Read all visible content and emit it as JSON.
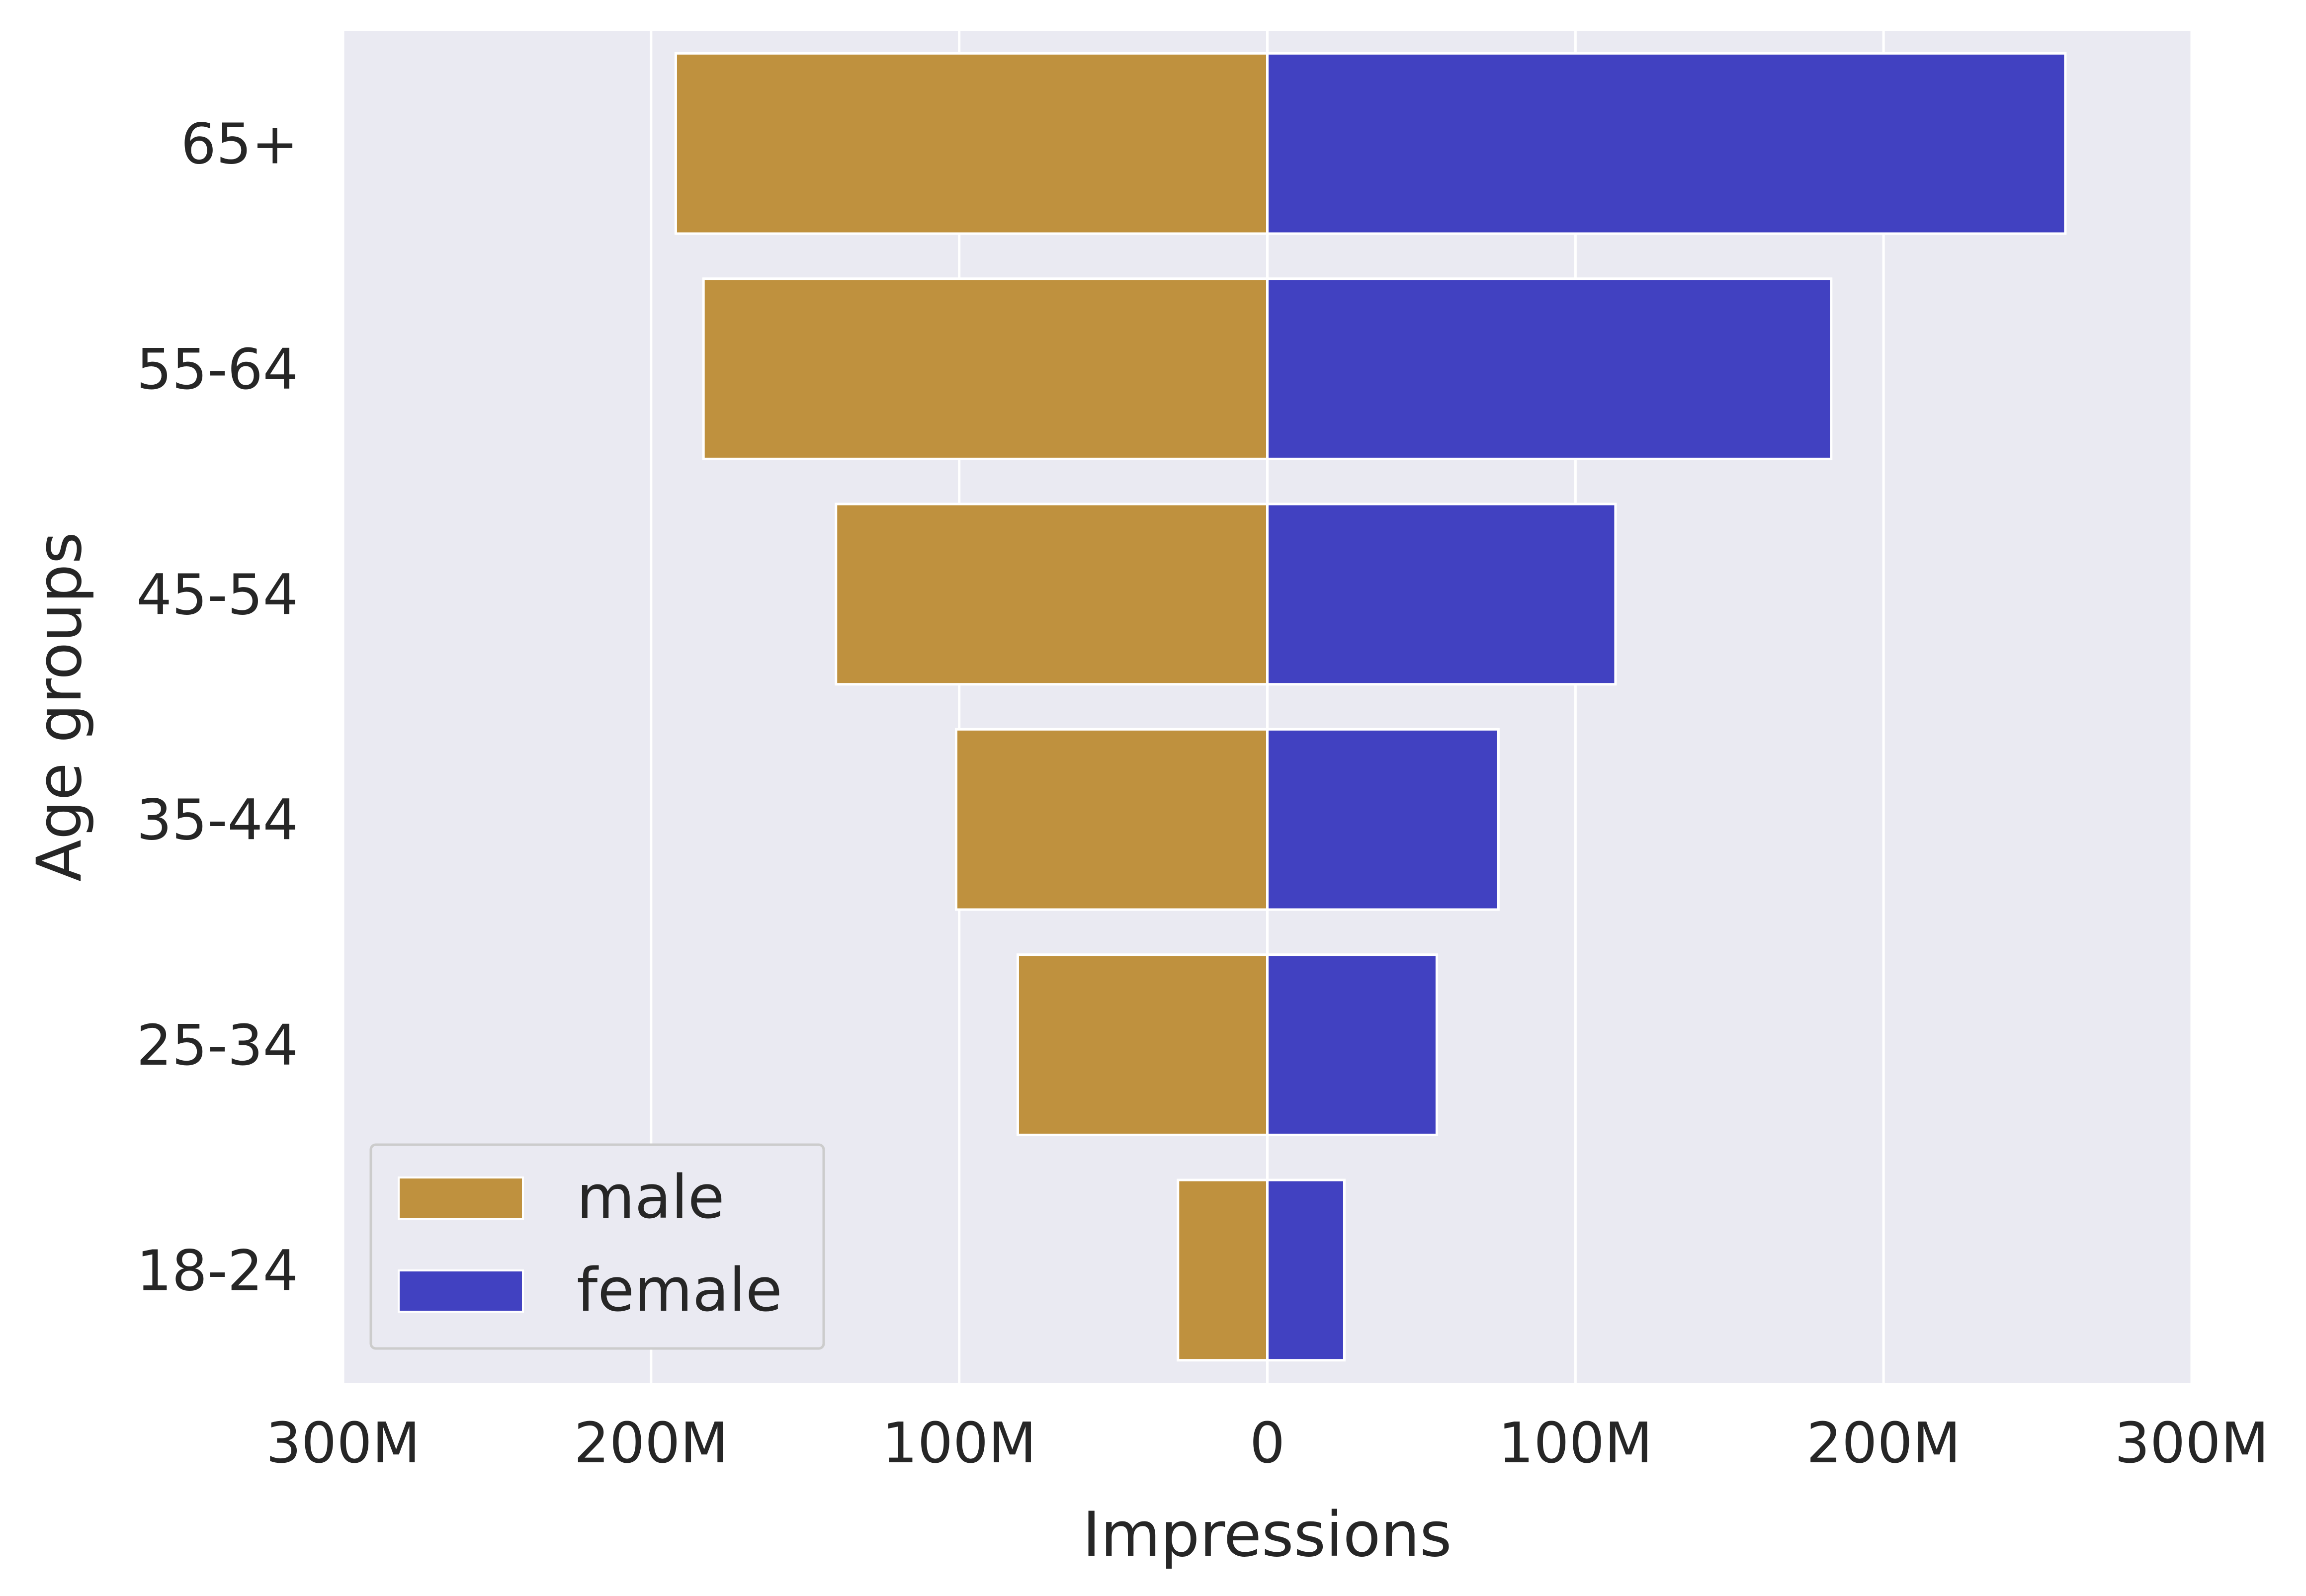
{
  "chart_data": {
    "type": "bar",
    "orientation": "horizontal",
    "layout": "population-pyramid",
    "title": "",
    "xlabel": "Impressions",
    "ylabel": "Age groups",
    "xlim": [
      -300000000,
      300000000
    ],
    "x_ticks": [
      {
        "value": -300000000,
        "label": "300M"
      },
      {
        "value": -200000000,
        "label": "200M"
      },
      {
        "value": -100000000,
        "label": "100M"
      },
      {
        "value": 0,
        "label": "0"
      },
      {
        "value": 100000000,
        "label": "100M"
      },
      {
        "value": 200000000,
        "label": "200M"
      },
      {
        "value": 300000000,
        "label": "300M"
      }
    ],
    "categories": [
      "65+",
      "55-64",
      "45-54",
      "35-44",
      "25-34",
      "18-24"
    ],
    "series": [
      {
        "name": "male",
        "color": "#bf913e",
        "values": [
          192000000,
          183000000,
          140000000,
          101000000,
          81000000,
          29000000
        ]
      },
      {
        "name": "female",
        "color": "#4141c1",
        "values": [
          259000000,
          183000000,
          113000000,
          75000000,
          55000000,
          25000000
        ]
      }
    ],
    "grid": true,
    "legend": "lower-left",
    "background": "#eaeaf2"
  }
}
